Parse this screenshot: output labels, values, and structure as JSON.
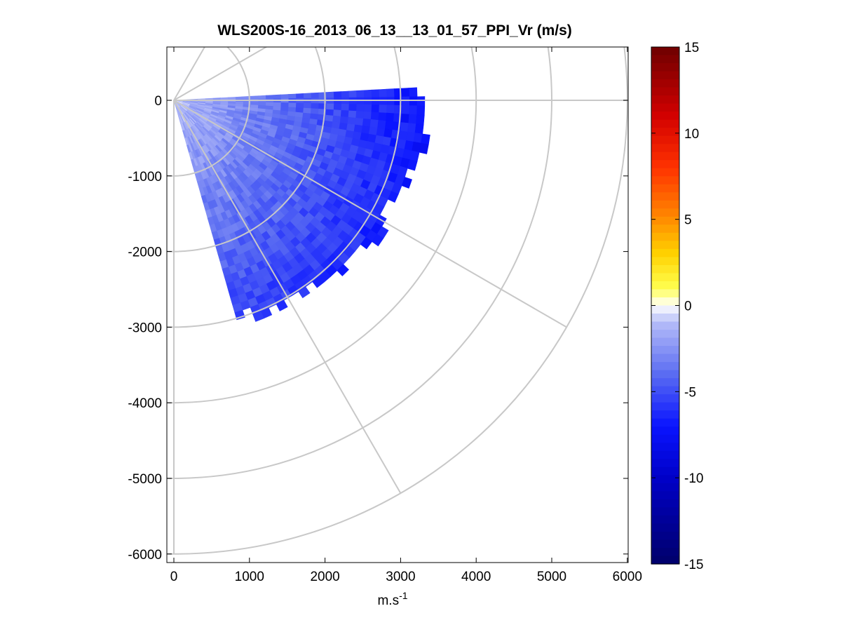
{
  "chart_data": {
    "type": "heatmap",
    "subtype": "polar-ppi",
    "title": "WLS200S-16_2013_06_13__13_01_57_PPI_Vr (m/s)",
    "xlabel": "m.s",
    "xlabel_superscript": "-1",
    "ylabel": "",
    "xlim": [
      -100,
      6000
    ],
    "ylim": [
      -6100,
      700
    ],
    "xticks": [
      0,
      1000,
      2000,
      3000,
      4000,
      5000,
      6000
    ],
    "xtick_labels": [
      "0",
      "1000",
      "2000",
      "3000",
      "4000",
      "5000",
      "6000"
    ],
    "yticks": [
      0,
      -1000,
      -2000,
      -3000,
      -4000,
      -5000,
      -6000
    ],
    "ytick_labels": [
      "0",
      "-1000",
      "-2000",
      "-3000",
      "-4000",
      "-5000",
      "-6000"
    ],
    "polar_grid": {
      "origin": [
        0,
        0
      ],
      "range_rings": [
        1000,
        2000,
        3000,
        4000,
        5000,
        6000
      ],
      "radial_lines_deg": [
        0,
        -30,
        -60,
        -90,
        30,
        60
      ]
    },
    "sector": {
      "azimuth_start_deg": 3,
      "azimuth_end_deg": -74,
      "typical_max_range": 3300,
      "velocity_description": "negative radial velocity, -1 near origin increasing to about -8 at far range"
    },
    "colorbar": {
      "min": -15,
      "max": 15,
      "ticks": [
        15,
        10,
        5,
        0,
        -5,
        -10,
        -15
      ],
      "tick_labels": [
        "15",
        "10",
        "5",
        "0",
        "-5",
        "-10",
        "-15"
      ],
      "colormap_stops": [
        {
          "value": -15,
          "color": "#00006a"
        },
        {
          "value": -10,
          "color": "#0000c8"
        },
        {
          "value": -7,
          "color": "#0a14ff"
        },
        {
          "value": -4,
          "color": "#5a6cf2"
        },
        {
          "value": -1,
          "color": "#b4bcf8"
        },
        {
          "value": 0,
          "color": "#ffffff"
        },
        {
          "value": 1,
          "color": "#ffff50"
        },
        {
          "value": 3,
          "color": "#ffd200"
        },
        {
          "value": 5,
          "color": "#ff8c00"
        },
        {
          "value": 8,
          "color": "#ff3200"
        },
        {
          "value": 11,
          "color": "#d20000"
        },
        {
          "value": 15,
          "color": "#6e0000"
        }
      ]
    }
  }
}
